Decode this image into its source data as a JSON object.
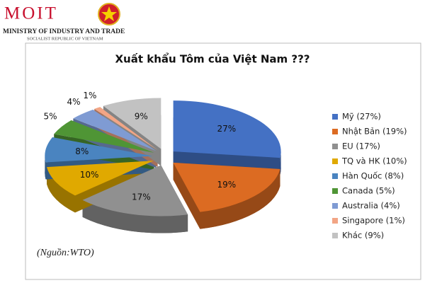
{
  "header": {
    "logo": "MOIT",
    "ministry": "MINISTRY OF INDUSTRY AND TRADE",
    "country": "SOCIALIST REPUBLIC OF VIETNAM"
  },
  "chart_data": {
    "type": "pie",
    "title": "Xuất khẩu Tôm của Việt Nam ???",
    "categories": [
      "Mỹ (27%)",
      "Nhật Bản (19%)",
      "EU (17%)",
      "TQ và HK (10%)",
      "Hàn Quốc (8%)",
      "Canada (5%)",
      "Australia (4%)",
      "Singapore (1%)",
      "Khác (9%)"
    ],
    "values": [
      27,
      19,
      17,
      10,
      8,
      5,
      4,
      1,
      9
    ],
    "value_labels": [
      "27%",
      "19%",
      "17%",
      "10%",
      "8%",
      "5%",
      "4%",
      "1%",
      "9%"
    ],
    "colors": [
      "#4471c4",
      "#dc6b22",
      "#909090",
      "#e0a900",
      "#4a84c0",
      "#4f9535",
      "#7f9bd3",
      "#f2a585",
      "#c2c2c2"
    ],
    "legend": "right",
    "source": "(Nguồn:WTO)"
  }
}
